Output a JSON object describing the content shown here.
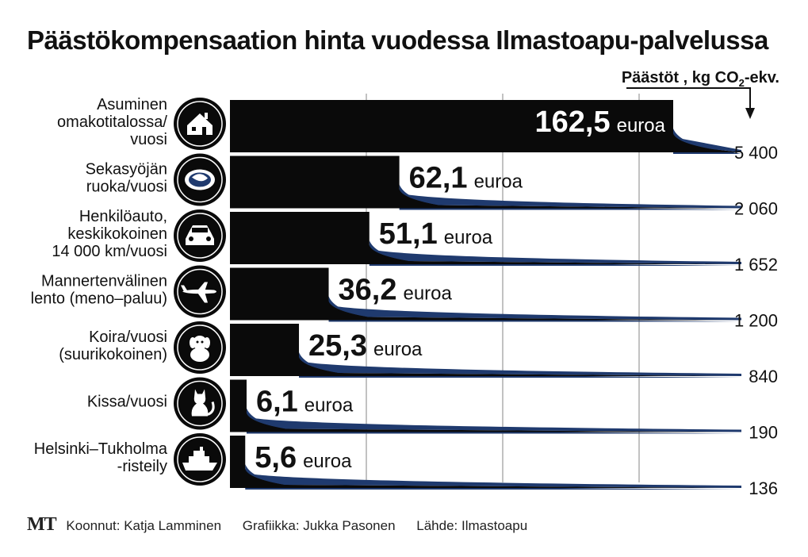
{
  "title": "Päästökompensaation hinta vuodessa Ilmastoapu-palvelussa",
  "emissions_header": {
    "prefix": "Päästöt , kg CO",
    "subscript": "2",
    "suffix": "-ekv."
  },
  "footer": {
    "logo": "MT",
    "compiled": "Koonnut: Katja Lamminen",
    "graphics": "Grafiikka: Jukka Pasonen",
    "source": "Lähde: Ilmastoapu"
  },
  "colors": {
    "bar": "#0a0a0a",
    "accent": "#1f3a6e",
    "grid": "#9a9a9a",
    "icon_bg": "#0a0a0a",
    "icon_fg": "#ffffff"
  },
  "chart_data": {
    "type": "bar",
    "orientation": "horizontal",
    "title": "Päästökompensaation hinta vuodessa Ilmastoapu-palvelussa",
    "value_unit": "euroa",
    "secondary_label": "Päästöt , kg CO₂-ekv.",
    "xlim": [
      0,
      180
    ],
    "grid": true,
    "categories": [
      [
        "Asuminen",
        "omakotitalossa/",
        "vuosi"
      ],
      [
        "Sekasyöjän",
        "ruoka/vuosi"
      ],
      [
        "Henkilöauto,",
        "keskikokoinen",
        "14 000 km/vuosi"
      ],
      [
        "Mannertenvälinen",
        "lento (meno–paluu)"
      ],
      [
        "Koira/vuosi",
        "(suurikokoinen)"
      ],
      [
        "Kissa/vuosi"
      ],
      [
        "Helsinki–Tukholma",
        "-risteily"
      ]
    ],
    "icons": [
      "house-icon",
      "food-plate-icon",
      "car-icon",
      "airplane-icon",
      "dog-icon",
      "cat-icon",
      "ship-icon"
    ],
    "values": [
      162.5,
      62.1,
      51.1,
      36.2,
      25.3,
      6.1,
      5.6
    ],
    "value_labels": [
      "162,5",
      "62,1",
      "51,1",
      "36,2",
      "25,3",
      "6,1",
      "5,6"
    ],
    "emissions": [
      "5 400",
      "2 060",
      "1 652",
      "1 200",
      "840",
      "190",
      "136"
    ]
  }
}
